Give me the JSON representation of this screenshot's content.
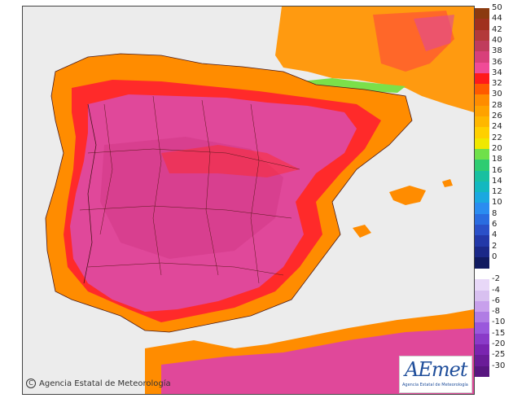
{
  "map": {
    "copyright": "Agencia Estatal de Meteorología",
    "copyright_symbol": "C",
    "logo_text": "AEmet",
    "logo_subtext": "Agencia Estatal de Meteorología",
    "sea_color": "#ececec",
    "land_colors": {
      "hottest": "#e0489a",
      "very_hot": "#ee3f8d",
      "hot": "#ff1a1a",
      "warm": "#ff8c00",
      "mild": "#ffb300",
      "cool": "#6fe04a"
    }
  },
  "legend": {
    "positive": [
      {
        "label": "50",
        "color": "#8b3a0f"
      },
      {
        "label": "44",
        "color": "#a0301e"
      },
      {
        "label": "42",
        "color": "#b33a3a"
      },
      {
        "label": "40",
        "color": "#c03c5c"
      },
      {
        "label": "38",
        "color": "#d8407a"
      },
      {
        "label": "36",
        "color": "#f04b97"
      },
      {
        "label": "34",
        "color": "#ff1a1a"
      },
      {
        "label": "32",
        "color": "#ff5a00"
      },
      {
        "label": "30",
        "color": "#ff8c00"
      },
      {
        "label": "28",
        "color": "#ffa200"
      },
      {
        "label": "26",
        "color": "#ffb700"
      },
      {
        "label": "24",
        "color": "#ffd000"
      },
      {
        "label": "22",
        "color": "#f0e800"
      },
      {
        "label": "20",
        "color": "#6fe04a"
      },
      {
        "label": "18",
        "color": "#2ecc71"
      },
      {
        "label": "16",
        "color": "#18c0a0"
      },
      {
        "label": "14",
        "color": "#12b8c0"
      },
      {
        "label": "12",
        "color": "#1aa8e0"
      },
      {
        "label": "10",
        "color": "#2a8cf0"
      },
      {
        "label": "8",
        "color": "#2a6ce0"
      },
      {
        "label": "6",
        "color": "#2a50c8"
      },
      {
        "label": "4",
        "color": "#2238a8"
      },
      {
        "label": "2",
        "color": "#1a2888"
      },
      {
        "label": "0",
        "color": "#101a60"
      }
    ],
    "negative": [
      {
        "label": "-2",
        "color": "#e8d8f8"
      },
      {
        "label": "-4",
        "color": "#d8c0f0"
      },
      {
        "label": "-6",
        "color": "#c8a0ec"
      },
      {
        "label": "-8",
        "color": "#b07ce4"
      },
      {
        "label": "-10",
        "color": "#9a58dc"
      },
      {
        "label": "-15",
        "color": "#8a3ac8"
      },
      {
        "label": "-20",
        "color": "#7a24b0"
      },
      {
        "label": "-25",
        "color": "#6a1c98"
      },
      {
        "label": "-30",
        "color": "#581680"
      }
    ]
  }
}
